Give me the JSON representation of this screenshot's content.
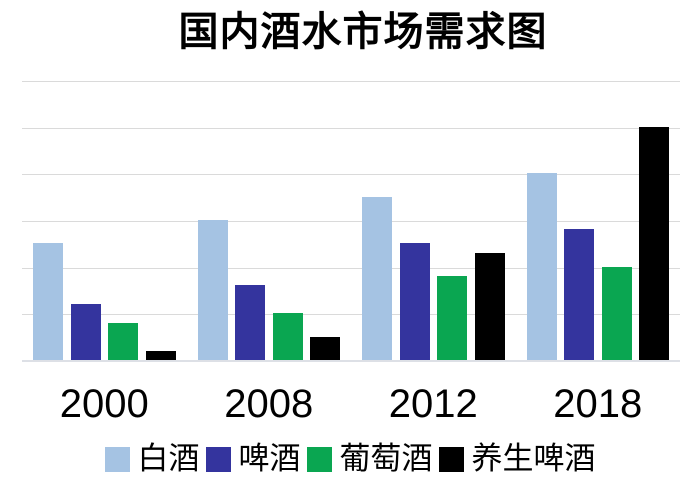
{
  "page": {
    "background_color": "#ffffff"
  },
  "title": "国内酒水市场需求图",
  "chart_data": {
    "type": "bar",
    "title": "国内酒水市场需求图",
    "categories": [
      "2000",
      "2008",
      "2012",
      "2018"
    ],
    "series": [
      {
        "name": "白酒",
        "color": "#a5c3e3",
        "values": [
          2.5,
          3.0,
          3.5,
          4.0
        ]
      },
      {
        "name": "啤酒",
        "color": "#34349e",
        "values": [
          1.2,
          1.6,
          2.5,
          2.8
        ]
      },
      {
        "name": "葡萄酒",
        "color": "#0aa651",
        "values": [
          0.8,
          1.0,
          1.8,
          2.0
        ]
      },
      {
        "name": "养生啤酒",
        "color": "#000000",
        "values": [
          0.2,
          0.5,
          2.3,
          5.0
        ]
      }
    ],
    "ylim": [
      0,
      6
    ],
    "y_gridline_step": 1,
    "y_axis_labels_visible": false,
    "grid": true,
    "gridline_color": "#dadada",
    "axis_line_color": "#dde0e6",
    "legend_position": "bottom",
    "xlabel": "",
    "ylabel": ""
  }
}
